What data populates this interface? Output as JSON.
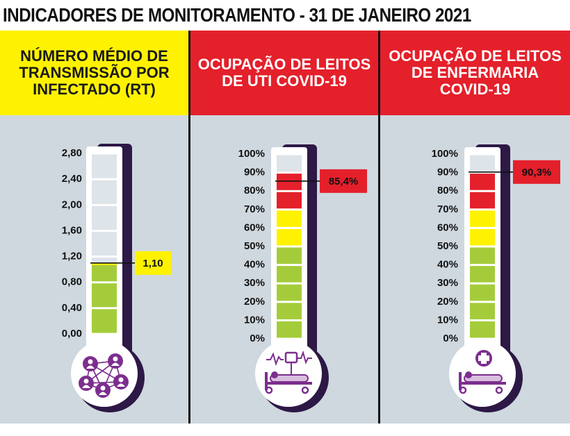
{
  "title": "INDICADORES DE MONITORAMENTO - 31 DE JANEIRO 2021",
  "colors": {
    "panel_bg": "#cfd8df",
    "yellow": "#fff200",
    "red": "#e4202b",
    "green": "#a4cc3a",
    "ring_purple": "#2d1846",
    "icon_purple": "#7c2e8e",
    "empty_segment": "#dde4ea"
  },
  "chart_data": [
    {
      "type": "gauge",
      "title": "NÚMERO MÉDIO DE TRANSMISSÃO POR INFECTADO (RT)",
      "header_color": "yellow",
      "tick_labels": [
        "2,80",
        "2,40",
        "2,00",
        "1,60",
        "1,20",
        "0,80",
        "0,40",
        "0,00"
      ],
      "ylim": [
        0,
        2.8
      ],
      "value": 1.1,
      "value_label": "1,10",
      "marker_color": "yellow",
      "fill_color": "green",
      "icon": "people-network-icon"
    },
    {
      "type": "gauge",
      "title": "OCUPAÇÃO DE LEITOS DE UTI COVID-19",
      "header_color": "red",
      "tick_labels": [
        "100%",
        "90%",
        "80%",
        "70%",
        "60%",
        "50%",
        "40%",
        "30%",
        "20%",
        "10%",
        "0%"
      ],
      "ylim": [
        0,
        100
      ],
      "value": 85.4,
      "value_label": "85,4%",
      "marker_color": "red",
      "bands": [
        {
          "from": 0,
          "to": 50,
          "color": "green"
        },
        {
          "from": 50,
          "to": 70,
          "color": "yellow"
        },
        {
          "from": 70,
          "to": 100,
          "color": "red"
        }
      ],
      "icon": "icu-bed-icon"
    },
    {
      "type": "gauge",
      "title": "OCUPAÇÃO DE LEITOS DE ENFERMARIA COVID-19",
      "header_color": "red",
      "tick_labels": [
        "100%",
        "90%",
        "80%",
        "70%",
        "60%",
        "50%",
        "40%",
        "30%",
        "20%",
        "10%",
        "0%"
      ],
      "ylim": [
        0,
        100
      ],
      "value": 90.3,
      "value_label": "90,3%",
      "marker_color": "red",
      "bands": [
        {
          "from": 0,
          "to": 50,
          "color": "green"
        },
        {
          "from": 50,
          "to": 70,
          "color": "yellow"
        },
        {
          "from": 70,
          "to": 100,
          "color": "red"
        }
      ],
      "icon": "ward-bed-icon"
    }
  ]
}
